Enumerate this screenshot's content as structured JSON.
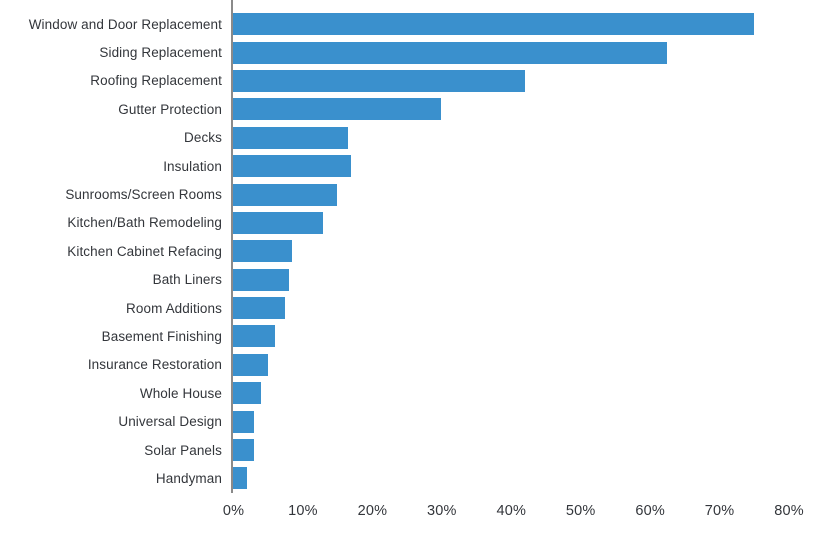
{
  "chart_data": {
    "type": "bar",
    "orientation": "horizontal",
    "title": "",
    "xlabel": "",
    "ylabel": "",
    "categories": [
      "Window and Door Replacement",
      "Siding Replacement",
      "Roofing Replacement",
      "Gutter Protection",
      "Decks",
      "Insulation",
      "Sunrooms/Screen Rooms",
      "Kitchen/Bath Remodeling",
      "Kitchen Cabinet Refacing",
      "Bath Liners",
      "Room Additions",
      "Basement Finishing",
      "Insurance Restoration",
      "Whole House",
      "Universal Design",
      "Solar Panels",
      "Handyman"
    ],
    "values": [
      75,
      62.5,
      42,
      30,
      16.5,
      17,
      15,
      13,
      8.5,
      8,
      7.5,
      6,
      5,
      4,
      3,
      3,
      2
    ],
    "value_unit": "%",
    "xlim": [
      0,
      80
    ],
    "x_ticks": [
      "0%",
      "10%",
      "20%",
      "30%",
      "40%",
      "50%",
      "60%",
      "70%",
      "80%"
    ],
    "grid": false,
    "legend": false,
    "colors": {
      "bar": "#3A90CD",
      "axis_line": "#8a8a8a",
      "text": "#33363b",
      "background": "#ffffff"
    }
  }
}
